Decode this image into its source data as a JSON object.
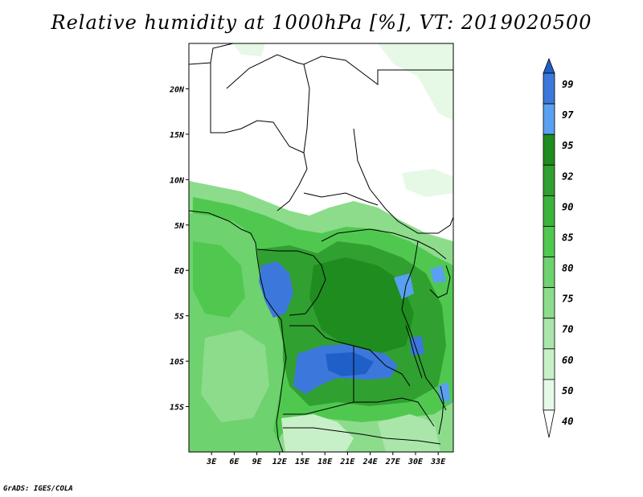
{
  "title": "Relative humidity at 1000hPa [%], VT: 2019020500",
  "credit": "GrADS: IGES/COLA",
  "map": {
    "lon_range": [
      0,
      35
    ],
    "lat_range": [
      -20,
      25
    ],
    "lat_ticks": [
      {
        "value": 20,
        "label": "20N"
      },
      {
        "value": 15,
        "label": "15N"
      },
      {
        "value": 10,
        "label": "10N"
      },
      {
        "value": 5,
        "label": "5N"
      },
      {
        "value": 0,
        "label": "EQ"
      },
      {
        "value": -5,
        "label": "5S"
      },
      {
        "value": -10,
        "label": "10S"
      },
      {
        "value": -15,
        "label": "15S"
      }
    ],
    "lon_ticks": [
      {
        "value": 3,
        "label": "3E"
      },
      {
        "value": 6,
        "label": "6E"
      },
      {
        "value": 9,
        "label": "9E"
      },
      {
        "value": 12,
        "label": "12E"
      },
      {
        "value": 15,
        "label": "15E"
      },
      {
        "value": 18,
        "label": "18E"
      },
      {
        "value": 21,
        "label": "21E"
      },
      {
        "value": 24,
        "label": "24E"
      },
      {
        "value": 27,
        "label": "27E"
      },
      {
        "value": 30,
        "label": "30E"
      },
      {
        "value": 33,
        "label": "33E"
      }
    ]
  },
  "colorbar": {
    "levels": [
      {
        "label": "99",
        "color": "#1f5fc8"
      },
      {
        "label": "97",
        "color": "#3c78dc"
      },
      {
        "label": "95",
        "color": "#5aa0f0"
      },
      {
        "label": "92",
        "color": "#1e8c1e"
      },
      {
        "label": "90",
        "color": "#30a030"
      },
      {
        "label": "85",
        "color": "#3cb43c"
      },
      {
        "label": "80",
        "color": "#50c850"
      },
      {
        "label": "75",
        "color": "#6ed26e"
      },
      {
        "label": "70",
        "color": "#8cdc8c"
      },
      {
        "label": "60",
        "color": "#aae6aa"
      },
      {
        "label": "50",
        "color": "#c8f0c8"
      },
      {
        "label": "40",
        "color": "#e6f8e6"
      }
    ],
    "top_color": "#1f5fc8",
    "bottom_color": "#ffffff"
  }
}
